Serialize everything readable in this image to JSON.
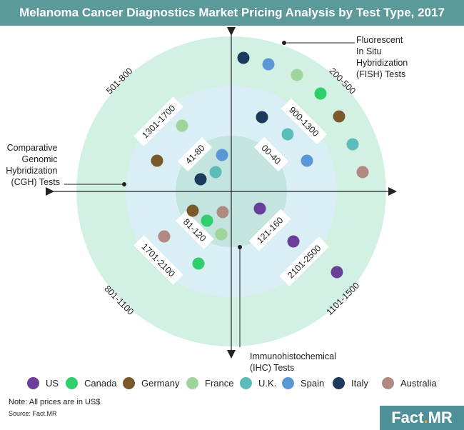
{
  "title": "Melanoma Cancer Diagnostics Market Pricing Analysis by Test Type, 2017",
  "colors": {
    "title_bar": "#5c9a9a",
    "outer_ring": "#d2f1e3",
    "middle_ring": "#daeff5",
    "inner_ring": "#c4e4e0",
    "center_diamond": "#ffffff"
  },
  "chart_data": {
    "type": "scatter",
    "quadrants": [
      {
        "id": "fish",
        "test": "Fluorescent In Situ Hybridization (FISH) Tests",
        "outer": "200-500",
        "middle": "900-1300",
        "inner": "00-40"
      },
      {
        "id": "cgh",
        "test": "Comparative Genomic Hybridization (CGH) Tests",
        "outer": "501-800",
        "middle": "1301-1700",
        "inner": "41-80"
      },
      {
        "id": "ihc",
        "test": "Immunohistochemical (IHC) Tests",
        "outer": "1101-1500",
        "middle": "2101-2500",
        "inner": "121-160"
      },
      {
        "id": "q4",
        "test": "",
        "outer": "801-1100",
        "middle": "1701-2100",
        "inner": "81-120"
      }
    ],
    "countries": [
      {
        "name": "US",
        "color": "#6a3f98",
        "placements": [
          {
            "quadrant": "ihc",
            "band": "inner"
          },
          {
            "quadrant": "ihc",
            "band": "middle"
          },
          {
            "quadrant": "ihc",
            "band": "outer"
          }
        ]
      },
      {
        "name": "Canada",
        "color": "#2fcf6b",
        "placements": [
          {
            "quadrant": "fish",
            "band": "outer"
          },
          {
            "quadrant": "q4",
            "band": "inner"
          },
          {
            "quadrant": "q4",
            "band": "middle"
          }
        ]
      },
      {
        "name": "Germany",
        "color": "#7a5a2a",
        "placements": [
          {
            "quadrant": "fish",
            "band": "outer"
          },
          {
            "quadrant": "cgh",
            "band": "middle"
          },
          {
            "quadrant": "q4",
            "band": "inner"
          }
        ]
      },
      {
        "name": "France",
        "color": "#9fd49b",
        "placements": [
          {
            "quadrant": "fish",
            "band": "outer"
          },
          {
            "quadrant": "cgh",
            "band": "middle"
          },
          {
            "quadrant": "q4",
            "band": "inner"
          }
        ]
      },
      {
        "name": "U.K.",
        "color": "#5bbcb8",
        "placements": [
          {
            "quadrant": "fish",
            "band": "middle"
          },
          {
            "quadrant": "fish",
            "band": "outer"
          },
          {
            "quadrant": "cgh",
            "band": "inner"
          }
        ]
      },
      {
        "name": "Spain",
        "color": "#5b97d6",
        "placements": [
          {
            "quadrant": "fish",
            "band": "outer"
          },
          {
            "quadrant": "fish",
            "band": "middle"
          },
          {
            "quadrant": "cgh",
            "band": "inner"
          }
        ]
      },
      {
        "name": "Italy",
        "color": "#1b3a5c",
        "placements": [
          {
            "quadrant": "fish",
            "band": "outer"
          },
          {
            "quadrant": "fish",
            "band": "middle"
          },
          {
            "quadrant": "cgh",
            "band": "inner"
          }
        ]
      },
      {
        "name": "Australia",
        "color": "#b08a80",
        "placements": [
          {
            "quadrant": "fish",
            "band": "outer"
          },
          {
            "quadrant": "q4",
            "band": "inner"
          },
          {
            "quadrant": "q4",
            "band": "middle"
          }
        ]
      }
    ]
  },
  "axis_labels": {
    "top_right": [
      "Fluorescent",
      "In Situ",
      "Hybridization",
      "(FISH) Tests"
    ],
    "left": [
      "Comparative",
      "Genomic",
      "Hybridization",
      "(CGH) Tests"
    ],
    "bottom": [
      "Immunohistochemical",
      "(IHC) Tests"
    ]
  },
  "note": "Note: All prices are in US$",
  "source": "Source: Fact.MR",
  "logo": {
    "part1": "Fact",
    "dot": ".",
    "part2": "MR"
  }
}
